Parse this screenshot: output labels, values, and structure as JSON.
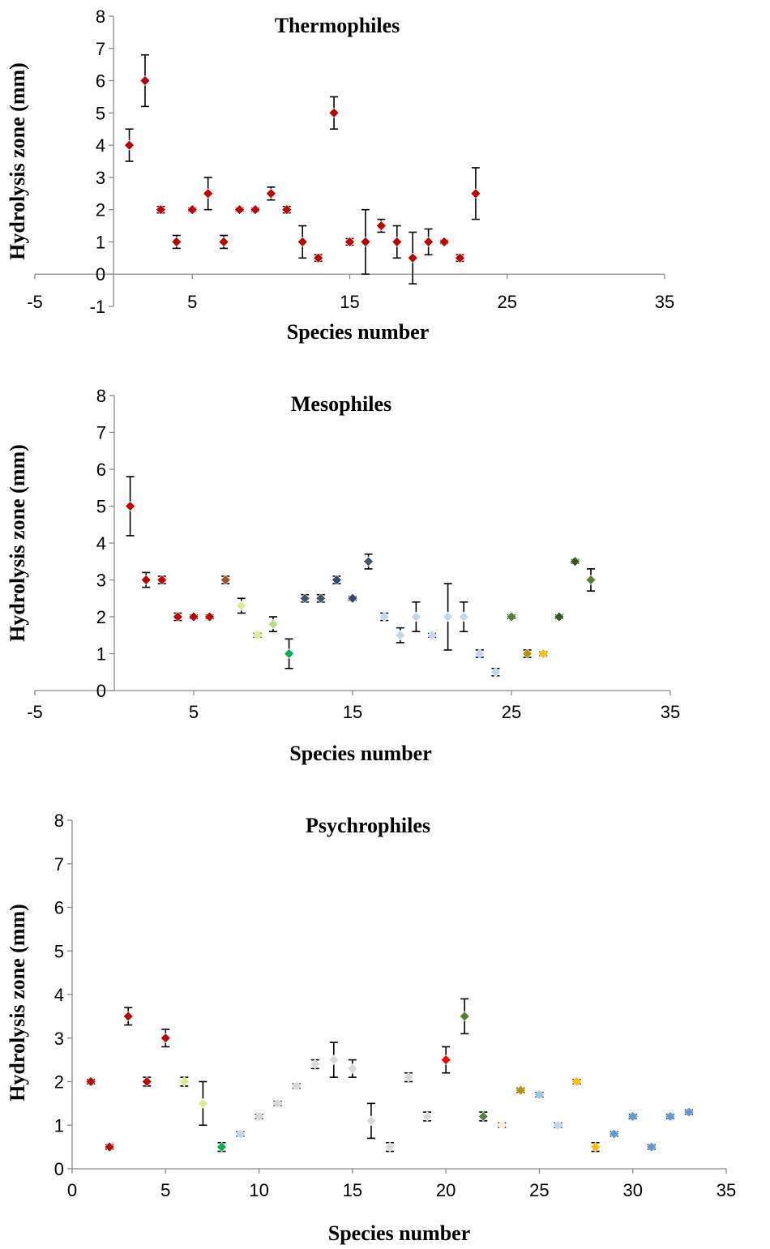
{
  "chart_data": [
    {
      "type": "scatter",
      "title": "Thermophiles",
      "xlabel": "Species number",
      "ylabel": "Hydrolysis zone (mm)",
      "xlim": [
        -5,
        35
      ],
      "ylim": [
        -1,
        8
      ],
      "xticks": [
        -5,
        5,
        15,
        25,
        35
      ],
      "yticks": [
        -1,
        0,
        1,
        2,
        3,
        4,
        5,
        6,
        7,
        8
      ],
      "points": [
        {
          "x": 1,
          "y": 4,
          "err": 0.5,
          "color": "#c00000"
        },
        {
          "x": 2,
          "y": 6,
          "err": 0.8,
          "color": "#c00000"
        },
        {
          "x": 3,
          "y": 2,
          "err": 0.1,
          "color": "#c00000"
        },
        {
          "x": 4,
          "y": 1,
          "err": 0.2,
          "color": "#c00000"
        },
        {
          "x": 5,
          "y": 2,
          "err": 0.05,
          "color": "#c00000"
        },
        {
          "x": 6,
          "y": 2.5,
          "err": 0.5,
          "color": "#c00000"
        },
        {
          "x": 7,
          "y": 1,
          "err": 0.2,
          "color": "#c00000"
        },
        {
          "x": 8,
          "y": 2,
          "err": 0.05,
          "color": "#c00000"
        },
        {
          "x": 9,
          "y": 2,
          "err": 0.05,
          "color": "#c00000"
        },
        {
          "x": 10,
          "y": 2.5,
          "err": 0.2,
          "color": "#c00000"
        },
        {
          "x": 11,
          "y": 2,
          "err": 0.1,
          "color": "#c00000"
        },
        {
          "x": 12,
          "y": 1,
          "err": 0.5,
          "color": "#c00000"
        },
        {
          "x": 13,
          "y": 0.5,
          "err": 0.1,
          "color": "#c00000"
        },
        {
          "x": 14,
          "y": 5,
          "err": 0.5,
          "color": "#c00000"
        },
        {
          "x": 15,
          "y": 1,
          "err": 0.1,
          "color": "#c00000"
        },
        {
          "x": 16,
          "y": 1,
          "err": 1.0,
          "color": "#c00000"
        },
        {
          "x": 17,
          "y": 1.5,
          "err": 0.2,
          "color": "#c00000"
        },
        {
          "x": 18,
          "y": 1,
          "err": 0.5,
          "color": "#c00000"
        },
        {
          "x": 19,
          "y": 0.5,
          "err": 0.8,
          "color": "#c00000"
        },
        {
          "x": 20,
          "y": 1,
          "err": 0.4,
          "color": "#c00000"
        },
        {
          "x": 21,
          "y": 1,
          "err": 0.05,
          "color": "#c00000"
        },
        {
          "x": 22,
          "y": 0.5,
          "err": 0.1,
          "color": "#c00000"
        },
        {
          "x": 23,
          "y": 2.5,
          "err": 0.8,
          "color": "#c00000"
        }
      ]
    },
    {
      "type": "scatter",
      "title": "Mesophiles",
      "xlabel": "Species number",
      "ylabel": "Hydrolysis zone (mm)",
      "xlim": [
        -5,
        35
      ],
      "ylim": [
        0,
        8
      ],
      "xticks": [
        -5,
        5,
        15,
        25,
        35
      ],
      "yticks": [
        0,
        1,
        2,
        3,
        4,
        5,
        6,
        7,
        8
      ],
      "points": [
        {
          "x": 1,
          "y": 5,
          "err": 0.8,
          "color": "#c00000"
        },
        {
          "x": 2,
          "y": 3,
          "err": 0.2,
          "color": "#c00000"
        },
        {
          "x": 3,
          "y": 3,
          "err": 0.1,
          "color": "#c00000"
        },
        {
          "x": 4,
          "y": 2,
          "err": 0.1,
          "color": "#c00000"
        },
        {
          "x": 5,
          "y": 2,
          "err": 0.05,
          "color": "#c00000"
        },
        {
          "x": 6,
          "y": 2,
          "err": 0.05,
          "color": "#c00000"
        },
        {
          "x": 7,
          "y": 3,
          "err": 0.1,
          "color": "#a0522d"
        },
        {
          "x": 8,
          "y": 2.3,
          "err": 0.2,
          "color": "#d9ef8b"
        },
        {
          "x": 9,
          "y": 1.5,
          "err": 0.05,
          "color": "#d9ef8b"
        },
        {
          "x": 10,
          "y": 1.8,
          "err": 0.2,
          "color": "#b5e08a"
        },
        {
          "x": 11,
          "y": 1,
          "err": 0.4,
          "color": "#00b050"
        },
        {
          "x": 12,
          "y": 2.5,
          "err": 0.1,
          "color": "#44546a"
        },
        {
          "x": 13,
          "y": 2.5,
          "err": 0.1,
          "color": "#44546a"
        },
        {
          "x": 14,
          "y": 3,
          "err": 0.1,
          "color": "#2f4a6e"
        },
        {
          "x": 15,
          "y": 2.5,
          "err": 0.05,
          "color": "#2f4a6e"
        },
        {
          "x": 16,
          "y": 3.5,
          "err": 0.2,
          "color": "#44546a"
        },
        {
          "x": 17,
          "y": 2,
          "err": 0.1,
          "color": "#c5d6ea"
        },
        {
          "x": 18,
          "y": 1.5,
          "err": 0.2,
          "color": "#c5d6ea"
        },
        {
          "x": 19,
          "y": 2,
          "err": 0.4,
          "color": "#c5d6ea"
        },
        {
          "x": 20,
          "y": 1.5,
          "err": 0.05,
          "color": "#c5d6ea"
        },
        {
          "x": 21,
          "y": 2,
          "err": 0.9,
          "color": "#c5d6ea"
        },
        {
          "x": 22,
          "y": 2,
          "err": 0.4,
          "color": "#c5d6ea"
        },
        {
          "x": 23,
          "y": 1,
          "err": 0.1,
          "color": "#c5d6ea"
        },
        {
          "x": 24,
          "y": 0.5,
          "err": 0.1,
          "color": "#c5d6ea"
        },
        {
          "x": 25,
          "y": 2,
          "err": 0.05,
          "color": "#538135"
        },
        {
          "x": 26,
          "y": 1,
          "err": 0.1,
          "color": "#bf8f00"
        },
        {
          "x": 27,
          "y": 1,
          "err": 0.05,
          "color": "#ffc000"
        },
        {
          "x": 28,
          "y": 2,
          "err": 0.05,
          "color": "#375623"
        },
        {
          "x": 29,
          "y": 3.5,
          "err": 0.05,
          "color": "#375623"
        },
        {
          "x": 30,
          "y": 3,
          "err": 0.3,
          "color": "#548235"
        }
      ]
    },
    {
      "type": "scatter",
      "title": "Psychrophiles",
      "xlabel": "Species number",
      "ylabel": "Hydrolysis zone (mm)",
      "xlim": [
        0,
        35
      ],
      "ylim": [
        0,
        8
      ],
      "xticks": [
        0,
        5,
        10,
        15,
        20,
        25,
        30,
        35
      ],
      "yticks": [
        0,
        1,
        2,
        3,
        4,
        5,
        6,
        7,
        8
      ],
      "points": [
        {
          "x": 1,
          "y": 2,
          "err": 0.05,
          "color": "#c00000"
        },
        {
          "x": 2,
          "y": 0.5,
          "err": 0.05,
          "color": "#c00000"
        },
        {
          "x": 3,
          "y": 3.5,
          "err": 0.2,
          "color": "#c00000"
        },
        {
          "x": 4,
          "y": 2,
          "err": 0.1,
          "color": "#c00000"
        },
        {
          "x": 5,
          "y": 3,
          "err": 0.2,
          "color": "#c00000"
        },
        {
          "x": 6,
          "y": 2,
          "err": 0.1,
          "color": "#d9ef8b"
        },
        {
          "x": 7,
          "y": 1.5,
          "err": 0.5,
          "color": "#d9ef8b"
        },
        {
          "x": 8,
          "y": 0.5,
          "err": 0.1,
          "color": "#00b050"
        },
        {
          "x": 9,
          "y": 0.8,
          "err": 0.05,
          "color": "#c5d6ea"
        },
        {
          "x": 10,
          "y": 1.2,
          "err": 0.05,
          "color": "#d9d9d9"
        },
        {
          "x": 11,
          "y": 1.5,
          "err": 0.05,
          "color": "#d9d9d9"
        },
        {
          "x": 12,
          "y": 1.9,
          "err": 0.05,
          "color": "#d9d9d9"
        },
        {
          "x": 13,
          "y": 2.4,
          "err": 0.1,
          "color": "#d9d9d9"
        },
        {
          "x": 14,
          "y": 2.5,
          "err": 0.4,
          "color": "#d9d9d9"
        },
        {
          "x": 15,
          "y": 2.3,
          "err": 0.2,
          "color": "#d9d9d9"
        },
        {
          "x": 16,
          "y": 1.1,
          "err": 0.4,
          "color": "#d9d9d9"
        },
        {
          "x": 17,
          "y": 0.5,
          "err": 0.1,
          "color": "#d9d9d9"
        },
        {
          "x": 18,
          "y": 2.1,
          "err": 0.1,
          "color": "#d9d9d9"
        },
        {
          "x": 19,
          "y": 1.2,
          "err": 0.1,
          "color": "#d9d9d9"
        },
        {
          "x": 20,
          "y": 2.5,
          "err": 0.3,
          "color": "#ff0000"
        },
        {
          "x": 21,
          "y": 3.5,
          "err": 0.4,
          "color": "#548235"
        },
        {
          "x": 22,
          "y": 1.2,
          "err": 0.1,
          "color": "#548235"
        },
        {
          "x": 23,
          "y": 1,
          "err": 0.05,
          "color": "#fff2cc"
        },
        {
          "x": 24,
          "y": 1.8,
          "err": 0.05,
          "color": "#bf8f00"
        },
        {
          "x": 25,
          "y": 1.7,
          "err": 0.05,
          "color": "#9dc3e6"
        },
        {
          "x": 26,
          "y": 1,
          "err": 0.05,
          "color": "#c5d6ea"
        },
        {
          "x": 27,
          "y": 2,
          "err": 0.05,
          "color": "#ffc000"
        },
        {
          "x": 28,
          "y": 0.5,
          "err": 0.1,
          "color": "#ffc000"
        },
        {
          "x": 29,
          "y": 0.8,
          "err": 0.05,
          "color": "#5b9bd5"
        },
        {
          "x": 30,
          "y": 1.2,
          "err": 0.05,
          "color": "#5b9bd5"
        },
        {
          "x": 31,
          "y": 0.5,
          "err": 0.05,
          "color": "#5b9bd5"
        },
        {
          "x": 32,
          "y": 1.2,
          "err": 0.05,
          "color": "#5b9bd5"
        },
        {
          "x": 33,
          "y": 1.3,
          "err": 0.05,
          "color": "#5b9bd5"
        }
      ]
    }
  ]
}
